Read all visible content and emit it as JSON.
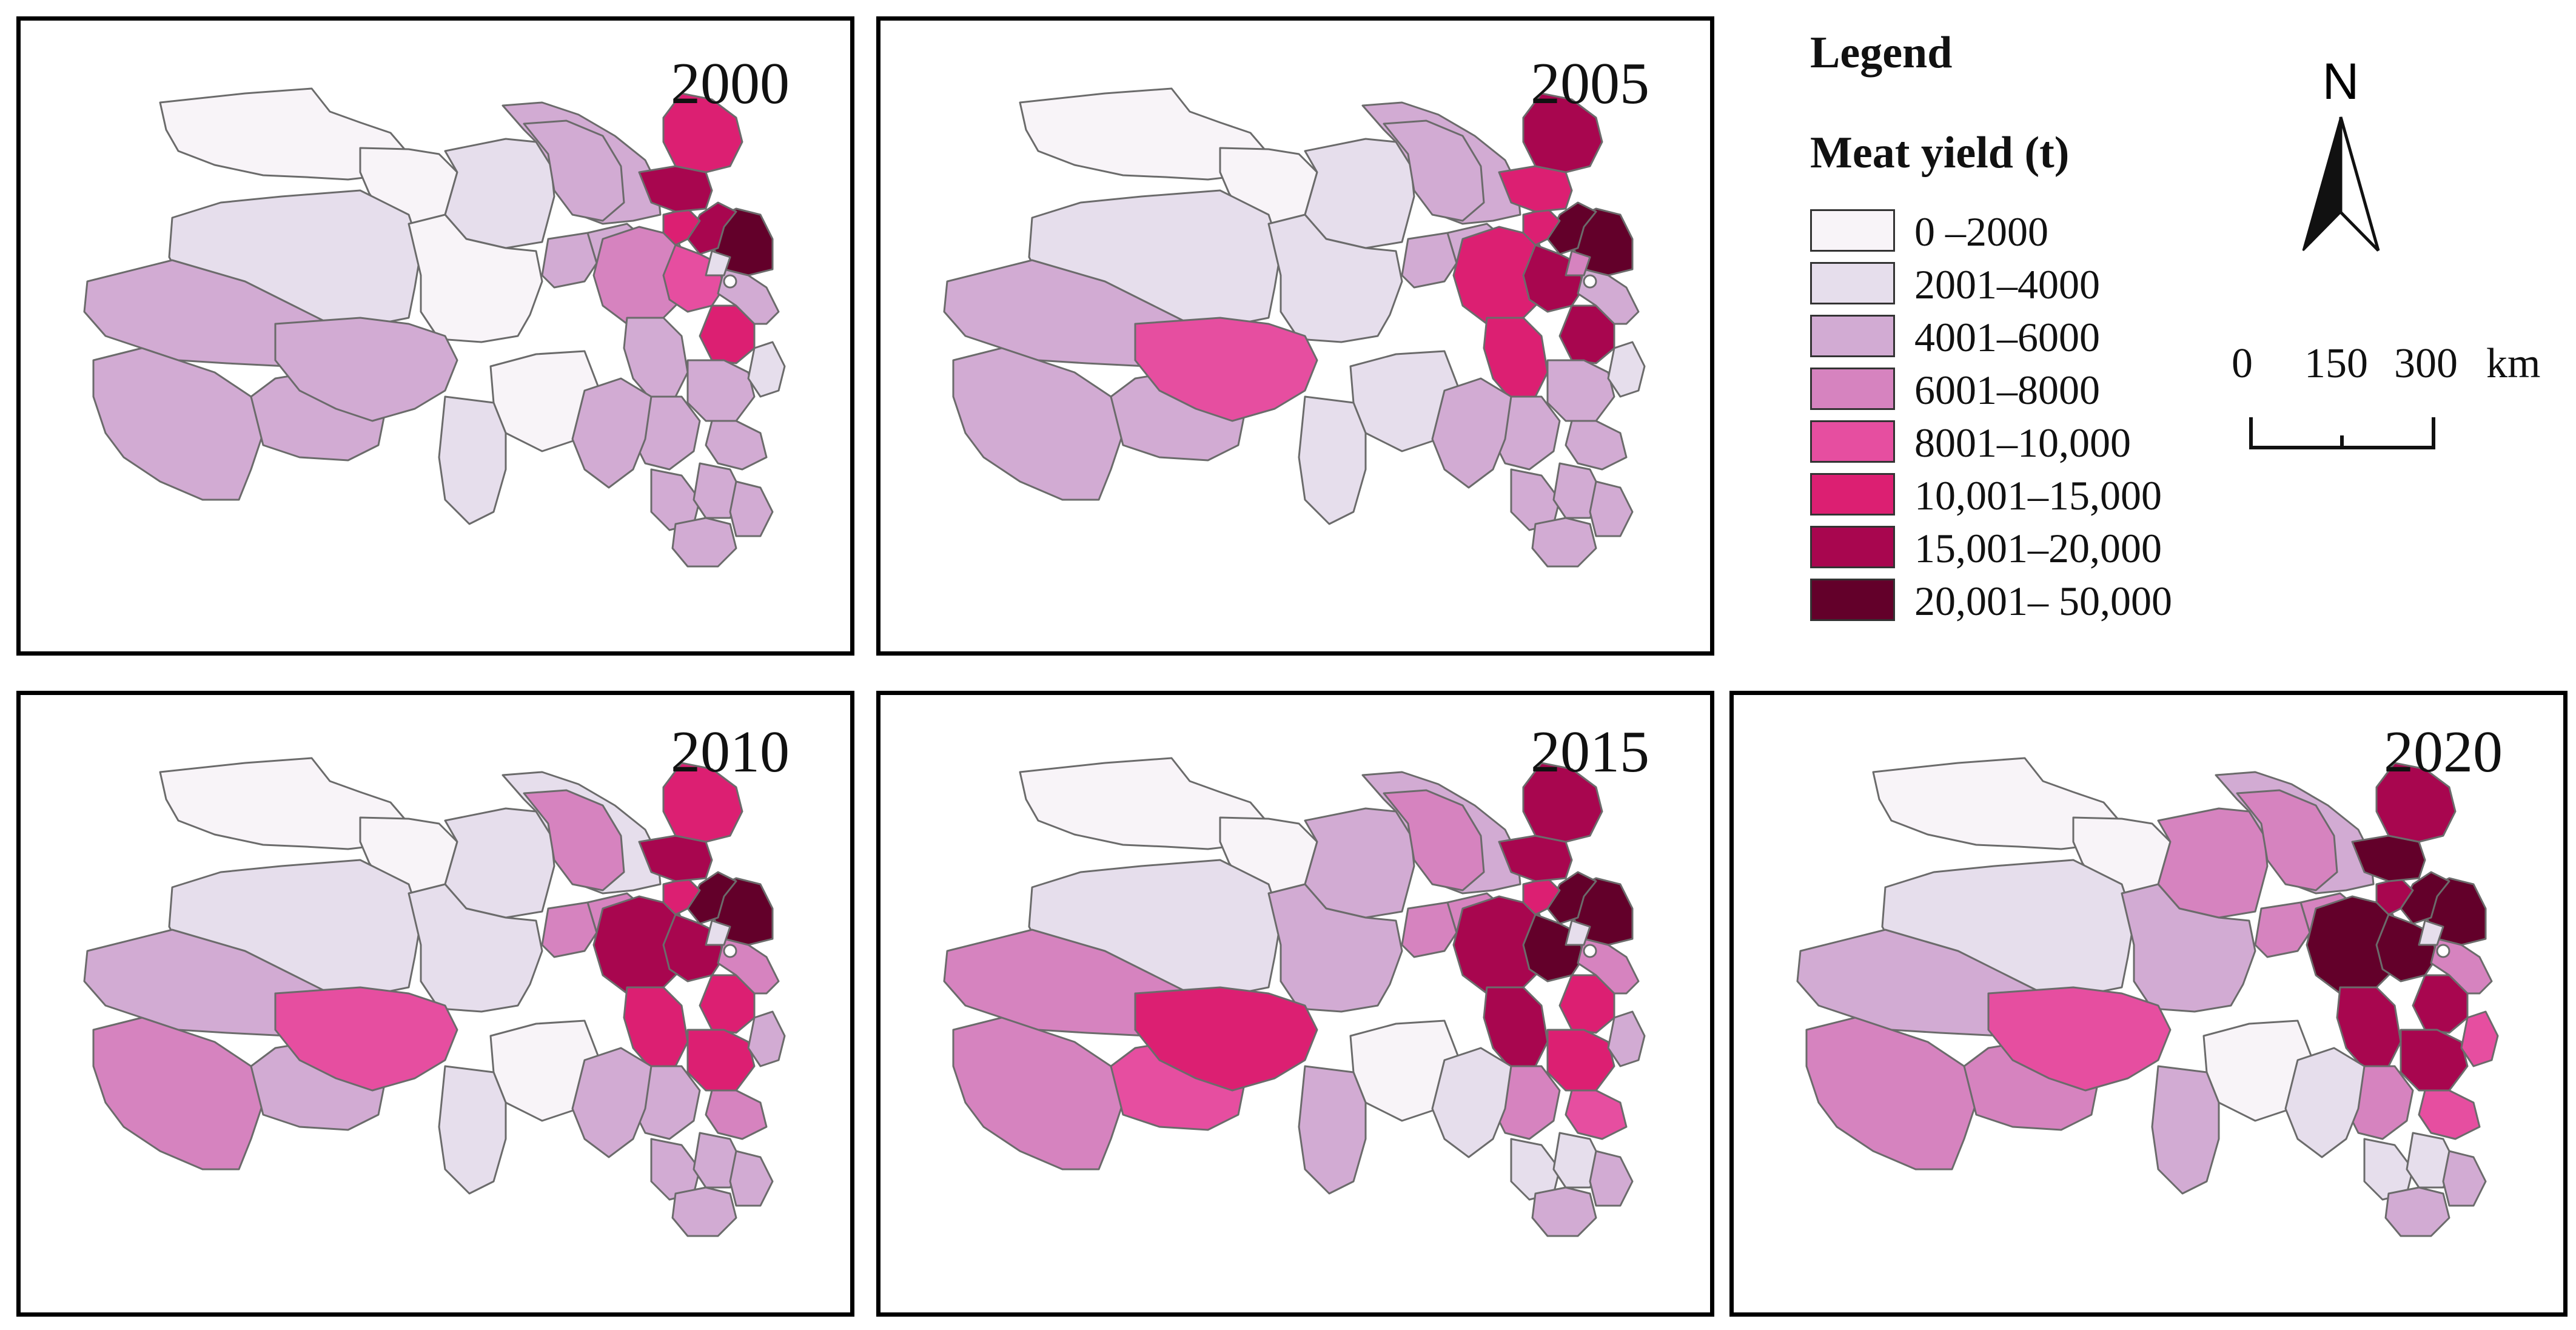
{
  "legend": {
    "title": "Legend",
    "subtitle": "Meat yield (t)",
    "classes": [
      {
        "label": "0 –2000",
        "color": "#f8f4f8"
      },
      {
        "label": "2001–4000",
        "color": "#e6deec"
      },
      {
        "label": "4001–6000",
        "color": "#d2abd3"
      },
      {
        "label": "6001–8000",
        "color": "#d683bf"
      },
      {
        "label": "8001–10,000",
        "color": "#e64ea0"
      },
      {
        "label": "10,001–15,000",
        "color": "#dc1f72"
      },
      {
        "label": "15,001–20,000",
        "color": "#a8064f"
      },
      {
        "label": "20,001– 50,000",
        "color": "#63002a"
      }
    ]
  },
  "north_arrow": {
    "label": "N"
  },
  "scale_bar": {
    "ticks": [
      "0",
      "150",
      "300"
    ],
    "unit": "km"
  },
  "maps": [
    {
      "year": "2000",
      "classes": [
        0,
        0,
        1,
        1,
        0,
        2,
        2,
        2,
        2,
        2,
        2,
        2,
        2,
        0,
        1,
        3,
        2,
        7,
        6,
        4,
        5,
        2,
        2,
        2,
        2,
        1,
        1,
        5,
        6,
        5,
        2,
        2,
        2,
        2,
        2
      ]
    },
    {
      "year": "2005",
      "classes": [
        0,
        0,
        1,
        1,
        1,
        2,
        2,
        2,
        2,
        2,
        2,
        2,
        4,
        1,
        1,
        5,
        5,
        7,
        7,
        6,
        6,
        2,
        2,
        2,
        2,
        1,
        3,
        5,
        5,
        6,
        2,
        2,
        2,
        2,
        2
      ]
    },
    {
      "year": "2010",
      "classes": [
        0,
        0,
        1,
        1,
        1,
        1,
        3,
        3,
        3,
        2,
        3,
        2,
        4,
        0,
        1,
        6,
        5,
        7,
        7,
        6,
        5,
        3,
        5,
        3,
        2,
        2,
        1,
        5,
        6,
        5,
        2,
        2,
        2,
        2,
        2
      ]
    },
    {
      "year": "2015",
      "classes": [
        0,
        0,
        2,
        1,
        2,
        2,
        3,
        3,
        3,
        3,
        3,
        4,
        5,
        0,
        2,
        6,
        6,
        7,
        7,
        7,
        5,
        3,
        5,
        4,
        3,
        2,
        1,
        5,
        6,
        6,
        1,
        1,
        1,
        2,
        2
      ]
    },
    {
      "year": "2020",
      "classes": [
        0,
        0,
        3,
        1,
        2,
        2,
        3,
        3,
        3,
        2,
        3,
        3,
        4,
        0,
        2,
        7,
        6,
        7,
        7,
        7,
        6,
        3,
        6,
        4,
        3,
        4,
        1,
        6,
        7,
        6,
        1,
        1,
        1,
        2,
        2
      ]
    }
  ]
}
